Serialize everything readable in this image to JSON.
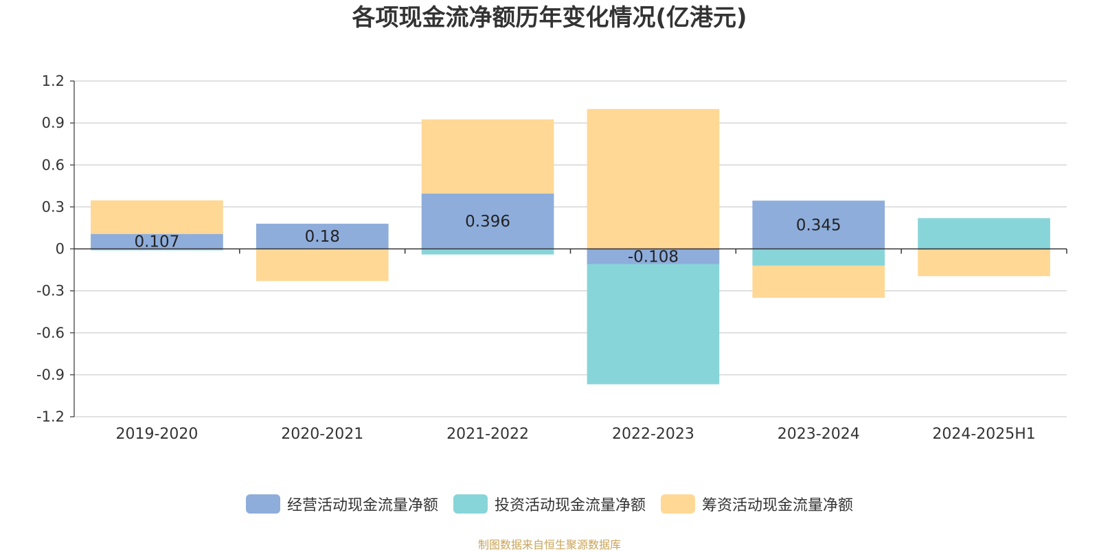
{
  "chart_data": {
    "type": "bar",
    "stacked": true,
    "title": "各项现金流净额历年变化情况(亿港元)",
    "xlabel": "",
    "ylabel": "",
    "categories": [
      "2019-2020",
      "2020-2021",
      "2021-2022",
      "2022-2023",
      "2023-2024",
      "2024-2025H1"
    ],
    "ylim": [
      -1.2,
      1.2
    ],
    "yticks": [
      1.2,
      0.9,
      0.6,
      0.3,
      0,
      -0.3,
      -0.6,
      -0.9,
      -1.2
    ],
    "ytick_labels": [
      "1.2",
      "0.9",
      "0.6",
      "0.3",
      "0",
      "-0.3",
      "-0.6",
      "-0.9",
      "-1.2"
    ],
    "grid": true,
    "legend_position": "bottom-center",
    "series": [
      {
        "name": "经营活动现金流量净额",
        "color": "#8eaddb",
        "values": [
          0.107,
          0.18,
          0.396,
          -0.108,
          0.345,
          -0.005
        ],
        "data_labels": [
          "0.107",
          "0.18",
          "0.396",
          "-0.108",
          "0.345",
          ""
        ]
      },
      {
        "name": "投资活动现金流量净额",
        "color": "#88d5d9",
        "values": [
          -0.01,
          0.0,
          -0.04,
          -0.86,
          -0.12,
          0.22
        ]
      },
      {
        "name": "筹资活动现金流量净额",
        "color": "#ffd896",
        "values": [
          0.24,
          -0.23,
          0.53,
          1.0,
          -0.23,
          -0.19
        ]
      }
    ]
  },
  "footer": {
    "source": "制图数据来自恒生聚源数据库"
  }
}
